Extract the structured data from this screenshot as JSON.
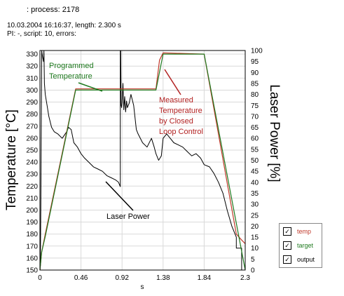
{
  "header": {
    "line1": ": process: 2178",
    "line2": "10.03.2004 16:16:37, length: 2.300 s",
    "line3": "PI: -, script: 10, errors:"
  },
  "chart_data": {
    "type": "line",
    "xlabel": "s",
    "ylabel": "Temperature [°C]",
    "y2label": "Laser Power [%]",
    "xlim": [
      0,
      2.3
    ],
    "ylim": [
      150,
      333
    ],
    "y2lim": [
      0,
      100
    ],
    "x_ticks": [
      "0",
      "0.46",
      "0.92",
      "1.38",
      "1.84",
      "2.3"
    ],
    "y_ticks": [
      330,
      320,
      310,
      300,
      290,
      280,
      270,
      260,
      250,
      240,
      230,
      220,
      210,
      200,
      190,
      180,
      170,
      160,
      150
    ],
    "y2_ticks": [
      100,
      95,
      90,
      85,
      80,
      75,
      70,
      65,
      60,
      55,
      50,
      45,
      40,
      35,
      30,
      25,
      20,
      15,
      10,
      5,
      0
    ],
    "grid": true,
    "legend": [
      "temp",
      "target",
      "output"
    ],
    "legend_position": "bottom-right outside",
    "annotations": {
      "programmed": [
        "Programmed",
        "Temperature"
      ],
      "measured": [
        "Measured",
        "Temperature",
        "by Closed",
        "Loop Control"
      ],
      "laser": "Laser Power"
    },
    "colors": {
      "temp": "#c0392b",
      "target": "#1f7a1f",
      "output": "#000000",
      "measured_label": "#b22222",
      "programmed_label": "#1f7a1f"
    },
    "series": [
      {
        "name": "target",
        "axis": "left",
        "x": [
          0,
          0.02,
          0.06,
          0.4,
          0.92,
          1.3,
          1.38,
          1.84,
          2.3
        ],
        "y": [
          150,
          165,
          178,
          300,
          300,
          300,
          330,
          330,
          150
        ]
      },
      {
        "name": "temp",
        "axis": "left",
        "x": [
          0,
          0.02,
          0.06,
          0.4,
          0.92,
          1.3,
          1.34,
          1.38,
          1.84,
          2.2,
          2.26,
          2.3
        ],
        "y": [
          150,
          165,
          180,
          301,
          301,
          301,
          325,
          331,
          330,
          180,
          175,
          172
        ]
      },
      {
        "name": "output",
        "axis": "right",
        "x": [
          0,
          0.005,
          0.01,
          0.02,
          0.03,
          0.04,
          0.045,
          0.05,
          0.06,
          0.08,
          0.1,
          0.13,
          0.16,
          0.2,
          0.25,
          0.3,
          0.32,
          0.35,
          0.38,
          0.42,
          0.46,
          0.5,
          0.55,
          0.6,
          0.65,
          0.7,
          0.75,
          0.8,
          0.85,
          0.88,
          0.9,
          0.9,
          0.905,
          0.91,
          0.915,
          0.92,
          0.93,
          0.94,
          0.95,
          0.96,
          0.97,
          0.98,
          1.0,
          1.02,
          1.05,
          1.08,
          1.1,
          1.15,
          1.2,
          1.25,
          1.28,
          1.3,
          1.33,
          1.36,
          1.38,
          1.42,
          1.46,
          1.5,
          1.55,
          1.6,
          1.65,
          1.7,
          1.75,
          1.8,
          1.84,
          1.9,
          1.95,
          2.0,
          2.05,
          2.1,
          2.15,
          2.2,
          2.2,
          2.26,
          2.26
        ],
        "y": [
          0,
          2,
          30,
          100,
          97,
          95,
          100,
          85,
          80,
          75,
          70,
          65,
          63,
          62,
          60,
          63,
          65,
          64,
          58,
          56,
          53,
          51,
          49,
          47,
          46,
          45,
          43,
          42,
          41,
          40,
          38,
          100,
          100,
          75,
          74,
          76,
          85,
          73,
          79,
          72,
          77,
          74,
          76,
          80,
          75,
          64,
          62,
          58,
          56,
          60,
          56,
          53,
          50,
          52,
          60,
          62,
          60,
          58,
          57,
          56,
          54,
          52,
          53,
          51,
          48,
          47,
          44,
          40,
          35,
          27,
          20,
          15,
          10,
          10,
          0
        ]
      }
    ]
  }
}
